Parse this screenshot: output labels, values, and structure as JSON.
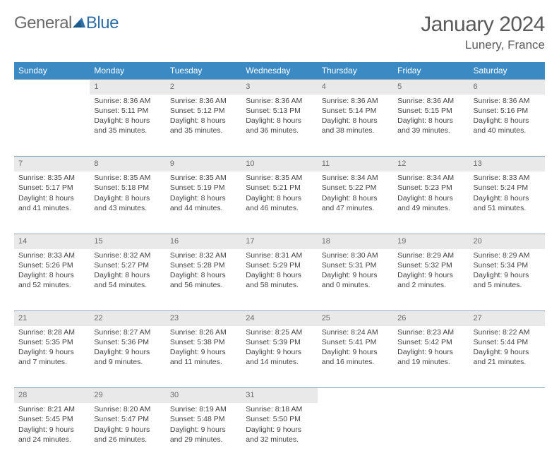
{
  "logo": {
    "part1": "General",
    "part2": "Blue"
  },
  "title": {
    "month": "January 2024",
    "location": "Lunery, France"
  },
  "dayHeaders": [
    "Sunday",
    "Monday",
    "Tuesday",
    "Wednesday",
    "Thursday",
    "Friday",
    "Saturday"
  ],
  "colors": {
    "headerBg": "#3b8ac4",
    "headerText": "#ffffff",
    "dayRowBg": "#e9e9e9",
    "dayRowBorder": "#8aa6bb",
    "bodyText": "#444444",
    "logoAccent": "#2f6fa8"
  },
  "weeks": [
    {
      "nums": [
        "",
        "1",
        "2",
        "3",
        "4",
        "5",
        "6"
      ],
      "cells": [
        {
          "empty": true
        },
        {
          "sunrise": "Sunrise: 8:36 AM",
          "sunset": "Sunset: 5:11 PM",
          "day1": "Daylight: 8 hours",
          "day2": "and 35 minutes."
        },
        {
          "sunrise": "Sunrise: 8:36 AM",
          "sunset": "Sunset: 5:12 PM",
          "day1": "Daylight: 8 hours",
          "day2": "and 35 minutes."
        },
        {
          "sunrise": "Sunrise: 8:36 AM",
          "sunset": "Sunset: 5:13 PM",
          "day1": "Daylight: 8 hours",
          "day2": "and 36 minutes."
        },
        {
          "sunrise": "Sunrise: 8:36 AM",
          "sunset": "Sunset: 5:14 PM",
          "day1": "Daylight: 8 hours",
          "day2": "and 38 minutes."
        },
        {
          "sunrise": "Sunrise: 8:36 AM",
          "sunset": "Sunset: 5:15 PM",
          "day1": "Daylight: 8 hours",
          "day2": "and 39 minutes."
        },
        {
          "sunrise": "Sunrise: 8:36 AM",
          "sunset": "Sunset: 5:16 PM",
          "day1": "Daylight: 8 hours",
          "day2": "and 40 minutes."
        }
      ]
    },
    {
      "nums": [
        "7",
        "8",
        "9",
        "10",
        "11",
        "12",
        "13"
      ],
      "cells": [
        {
          "sunrise": "Sunrise: 8:35 AM",
          "sunset": "Sunset: 5:17 PM",
          "day1": "Daylight: 8 hours",
          "day2": "and 41 minutes."
        },
        {
          "sunrise": "Sunrise: 8:35 AM",
          "sunset": "Sunset: 5:18 PM",
          "day1": "Daylight: 8 hours",
          "day2": "and 43 minutes."
        },
        {
          "sunrise": "Sunrise: 8:35 AM",
          "sunset": "Sunset: 5:19 PM",
          "day1": "Daylight: 8 hours",
          "day2": "and 44 minutes."
        },
        {
          "sunrise": "Sunrise: 8:35 AM",
          "sunset": "Sunset: 5:21 PM",
          "day1": "Daylight: 8 hours",
          "day2": "and 46 minutes."
        },
        {
          "sunrise": "Sunrise: 8:34 AM",
          "sunset": "Sunset: 5:22 PM",
          "day1": "Daylight: 8 hours",
          "day2": "and 47 minutes."
        },
        {
          "sunrise": "Sunrise: 8:34 AM",
          "sunset": "Sunset: 5:23 PM",
          "day1": "Daylight: 8 hours",
          "day2": "and 49 minutes."
        },
        {
          "sunrise": "Sunrise: 8:33 AM",
          "sunset": "Sunset: 5:24 PM",
          "day1": "Daylight: 8 hours",
          "day2": "and 51 minutes."
        }
      ]
    },
    {
      "nums": [
        "14",
        "15",
        "16",
        "17",
        "18",
        "19",
        "20"
      ],
      "cells": [
        {
          "sunrise": "Sunrise: 8:33 AM",
          "sunset": "Sunset: 5:26 PM",
          "day1": "Daylight: 8 hours",
          "day2": "and 52 minutes."
        },
        {
          "sunrise": "Sunrise: 8:32 AM",
          "sunset": "Sunset: 5:27 PM",
          "day1": "Daylight: 8 hours",
          "day2": "and 54 minutes."
        },
        {
          "sunrise": "Sunrise: 8:32 AM",
          "sunset": "Sunset: 5:28 PM",
          "day1": "Daylight: 8 hours",
          "day2": "and 56 minutes."
        },
        {
          "sunrise": "Sunrise: 8:31 AM",
          "sunset": "Sunset: 5:29 PM",
          "day1": "Daylight: 8 hours",
          "day2": "and 58 minutes."
        },
        {
          "sunrise": "Sunrise: 8:30 AM",
          "sunset": "Sunset: 5:31 PM",
          "day1": "Daylight: 9 hours",
          "day2": "and 0 minutes."
        },
        {
          "sunrise": "Sunrise: 8:29 AM",
          "sunset": "Sunset: 5:32 PM",
          "day1": "Daylight: 9 hours",
          "day2": "and 2 minutes."
        },
        {
          "sunrise": "Sunrise: 8:29 AM",
          "sunset": "Sunset: 5:34 PM",
          "day1": "Daylight: 9 hours",
          "day2": "and 5 minutes."
        }
      ]
    },
    {
      "nums": [
        "21",
        "22",
        "23",
        "24",
        "25",
        "26",
        "27"
      ],
      "cells": [
        {
          "sunrise": "Sunrise: 8:28 AM",
          "sunset": "Sunset: 5:35 PM",
          "day1": "Daylight: 9 hours",
          "day2": "and 7 minutes."
        },
        {
          "sunrise": "Sunrise: 8:27 AM",
          "sunset": "Sunset: 5:36 PM",
          "day1": "Daylight: 9 hours",
          "day2": "and 9 minutes."
        },
        {
          "sunrise": "Sunrise: 8:26 AM",
          "sunset": "Sunset: 5:38 PM",
          "day1": "Daylight: 9 hours",
          "day2": "and 11 minutes."
        },
        {
          "sunrise": "Sunrise: 8:25 AM",
          "sunset": "Sunset: 5:39 PM",
          "day1": "Daylight: 9 hours",
          "day2": "and 14 minutes."
        },
        {
          "sunrise": "Sunrise: 8:24 AM",
          "sunset": "Sunset: 5:41 PM",
          "day1": "Daylight: 9 hours",
          "day2": "and 16 minutes."
        },
        {
          "sunrise": "Sunrise: 8:23 AM",
          "sunset": "Sunset: 5:42 PM",
          "day1": "Daylight: 9 hours",
          "day2": "and 19 minutes."
        },
        {
          "sunrise": "Sunrise: 8:22 AM",
          "sunset": "Sunset: 5:44 PM",
          "day1": "Daylight: 9 hours",
          "day2": "and 21 minutes."
        }
      ]
    },
    {
      "nums": [
        "28",
        "29",
        "30",
        "31",
        "",
        "",
        ""
      ],
      "cells": [
        {
          "sunrise": "Sunrise: 8:21 AM",
          "sunset": "Sunset: 5:45 PM",
          "day1": "Daylight: 9 hours",
          "day2": "and 24 minutes."
        },
        {
          "sunrise": "Sunrise: 8:20 AM",
          "sunset": "Sunset: 5:47 PM",
          "day1": "Daylight: 9 hours",
          "day2": "and 26 minutes."
        },
        {
          "sunrise": "Sunrise: 8:19 AM",
          "sunset": "Sunset: 5:48 PM",
          "day1": "Daylight: 9 hours",
          "day2": "and 29 minutes."
        },
        {
          "sunrise": "Sunrise: 8:18 AM",
          "sunset": "Sunset: 5:50 PM",
          "day1": "Daylight: 9 hours",
          "day2": "and 32 minutes."
        },
        {
          "empty": true
        },
        {
          "empty": true
        },
        {
          "empty": true
        }
      ]
    }
  ]
}
